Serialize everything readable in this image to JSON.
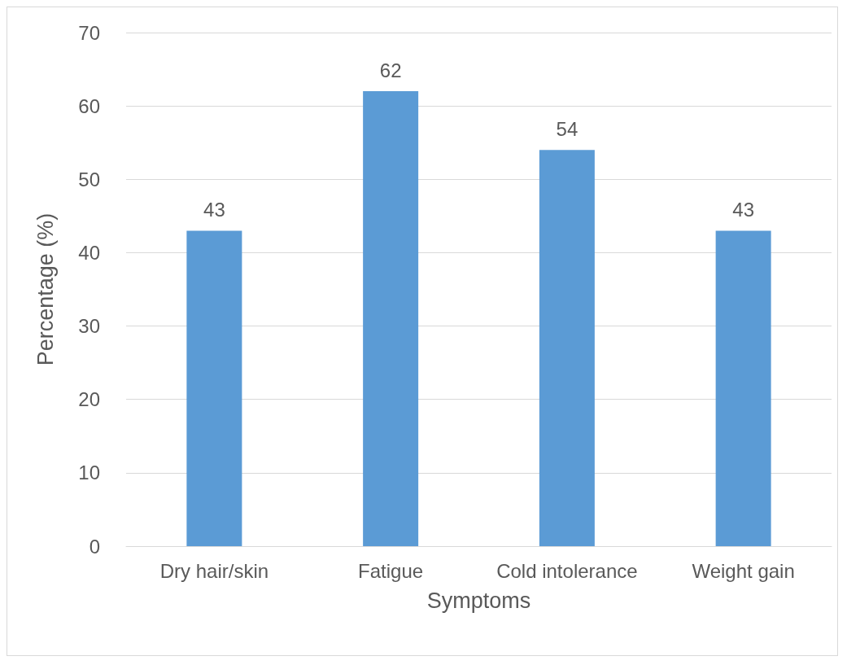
{
  "chart_data": {
    "type": "bar",
    "xlabel": "Symptoms",
    "ylabel": "Percentage (%)",
    "categories": [
      "Dry hair/skin",
      "Fatigue",
      "Cold intolerance",
      "Weight gain"
    ],
    "values": [
      43,
      62,
      54,
      43
    ],
    "color": "#5b9bd5",
    "ylim": [
      0,
      70
    ],
    "yticks": [
      0,
      10,
      20,
      30,
      40,
      50,
      60,
      70
    ],
    "grid": "y",
    "data_labels": true
  }
}
